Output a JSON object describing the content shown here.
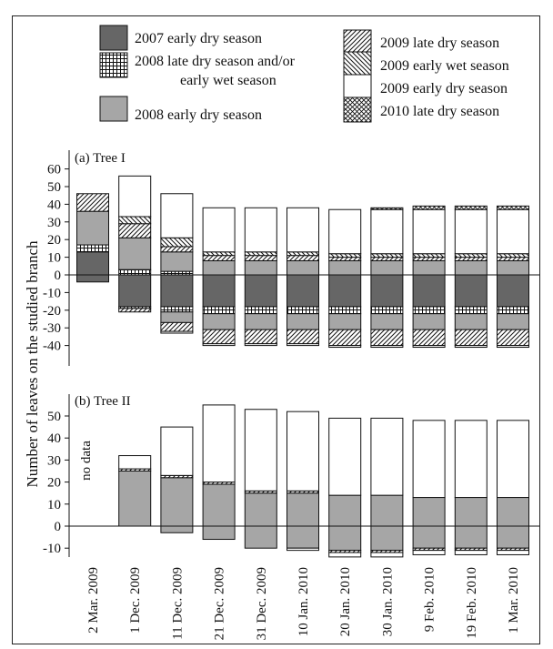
{
  "chart_data": {
    "type": "bar",
    "stacked": true,
    "ylabel": "Number of leaves on the studied branch",
    "categories": [
      "2 Mar. 2009",
      "1 Dec. 2009",
      "11 Dec. 2009",
      "21 Dec. 2009",
      "31 Dec. 2009",
      "10 Jan. 2010",
      "20 Jan. 2010",
      "30 Jan. 2010",
      "9 Feb. 2010",
      "19 Feb. 2010",
      "1 Mar. 2010"
    ],
    "legend": [
      {
        "key": "e07",
        "label": "2007 early dry season",
        "pattern": "dark"
      },
      {
        "key": "l08",
        "label": "2008 late dry season and/or",
        "label_line2": "early wet season",
        "pattern": "grid"
      },
      {
        "key": "e08",
        "label": "2008 early dry season",
        "pattern": "gray"
      },
      {
        "key": "l09",
        "label": "2009 late dry season",
        "pattern": "diag-right"
      },
      {
        "key": "w09",
        "label": "2009 early wet season",
        "pattern": "diag-left"
      },
      {
        "key": "d09",
        "label": "2009 early dry season",
        "pattern": "white"
      },
      {
        "key": "l10",
        "label": "2010 late dry season",
        "pattern": "cross"
      }
    ],
    "panels": [
      {
        "id": "tree1",
        "label": "(a) Tree I",
        "ylim": [
          -48,
          62
        ],
        "yticks": [
          60,
          50,
          40,
          30,
          20,
          10,
          0,
          -10,
          -20,
          -30,
          -40
        ],
        "positive": [
          [
            {
              "key": "e07",
              "v": 13
            },
            {
              "key": "l08",
              "v": 4
            },
            {
              "key": "e08",
              "v": 19
            },
            {
              "key": "l09",
              "v": 10
            }
          ],
          [
            {
              "key": "l08",
              "v": 3
            },
            {
              "key": "e08",
              "v": 18
            },
            {
              "key": "l09",
              "v": 8
            },
            {
              "key": "w09",
              "v": 4
            },
            {
              "key": "d09",
              "v": 23
            }
          ],
          [
            {
              "key": "l08",
              "v": 2
            },
            {
              "key": "e08",
              "v": 11
            },
            {
              "key": "l09",
              "v": 3
            },
            {
              "key": "w09",
              "v": 5
            },
            {
              "key": "d09",
              "v": 25
            }
          ],
          [
            {
              "key": "e08",
              "v": 8
            },
            {
              "key": "l09",
              "v": 3
            },
            {
              "key": "w09",
              "v": 2
            },
            {
              "key": "d09",
              "v": 25
            }
          ],
          [
            {
              "key": "e08",
              "v": 8
            },
            {
              "key": "l09",
              "v": 3
            },
            {
              "key": "w09",
              "v": 2
            },
            {
              "key": "d09",
              "v": 25
            }
          ],
          [
            {
              "key": "e08",
              "v": 8
            },
            {
              "key": "l09",
              "v": 3
            },
            {
              "key": "w09",
              "v": 2
            },
            {
              "key": "d09",
              "v": 25
            }
          ],
          [
            {
              "key": "e08",
              "v": 8
            },
            {
              "key": "l09",
              "v": 2
            },
            {
              "key": "w09",
              "v": 2
            },
            {
              "key": "d09",
              "v": 25
            }
          ],
          [
            {
              "key": "e08",
              "v": 8
            },
            {
              "key": "l09",
              "v": 2
            },
            {
              "key": "w09",
              "v": 2
            },
            {
              "key": "d09",
              "v": 25
            },
            {
              "key": "l10",
              "v": 1
            }
          ],
          [
            {
              "key": "e08",
              "v": 8
            },
            {
              "key": "l09",
              "v": 2
            },
            {
              "key": "w09",
              "v": 2
            },
            {
              "key": "d09",
              "v": 25
            },
            {
              "key": "l10",
              "v": 2
            }
          ],
          [
            {
              "key": "e08",
              "v": 8
            },
            {
              "key": "l09",
              "v": 2
            },
            {
              "key": "w09",
              "v": 2
            },
            {
              "key": "d09",
              "v": 25
            },
            {
              "key": "l10",
              "v": 2
            }
          ],
          [
            {
              "key": "e08",
              "v": 8
            },
            {
              "key": "l09",
              "v": 2
            },
            {
              "key": "w09",
              "v": 2
            },
            {
              "key": "d09",
              "v": 25
            },
            {
              "key": "l10",
              "v": 2
            }
          ]
        ],
        "negative": [
          [
            {
              "key": "e07",
              "v": 4
            }
          ],
          [
            {
              "key": "e07",
              "v": 18
            },
            {
              "key": "l08",
              "v": 1
            },
            {
              "key": "l09",
              "v": 2
            }
          ],
          [
            {
              "key": "e07",
              "v": 18
            },
            {
              "key": "l08",
              "v": 3
            },
            {
              "key": "e08",
              "v": 6
            },
            {
              "key": "l09",
              "v": 5
            },
            {
              "key": "d09",
              "v": 1
            }
          ],
          [
            {
              "key": "e07",
              "v": 18
            },
            {
              "key": "l08",
              "v": 4
            },
            {
              "key": "e08",
              "v": 9
            },
            {
              "key": "l09",
              "v": 8
            },
            {
              "key": "d09",
              "v": 1
            }
          ],
          [
            {
              "key": "e07",
              "v": 18
            },
            {
              "key": "l08",
              "v": 4
            },
            {
              "key": "e08",
              "v": 9
            },
            {
              "key": "l09",
              "v": 8
            },
            {
              "key": "d09",
              "v": 1
            }
          ],
          [
            {
              "key": "e07",
              "v": 18
            },
            {
              "key": "l08",
              "v": 4
            },
            {
              "key": "e08",
              "v": 9
            },
            {
              "key": "l09",
              "v": 8
            },
            {
              "key": "d09",
              "v": 1
            }
          ],
          [
            {
              "key": "e07",
              "v": 18
            },
            {
              "key": "l08",
              "v": 4
            },
            {
              "key": "e08",
              "v": 9
            },
            {
              "key": "l09",
              "v": 9
            },
            {
              "key": "d09",
              "v": 1
            }
          ],
          [
            {
              "key": "e07",
              "v": 18
            },
            {
              "key": "l08",
              "v": 4
            },
            {
              "key": "e08",
              "v": 9
            },
            {
              "key": "l09",
              "v": 9
            },
            {
              "key": "d09",
              "v": 1
            }
          ],
          [
            {
              "key": "e07",
              "v": 18
            },
            {
              "key": "l08",
              "v": 4
            },
            {
              "key": "e08",
              "v": 9
            },
            {
              "key": "l09",
              "v": 9
            },
            {
              "key": "d09",
              "v": 1
            }
          ],
          [
            {
              "key": "e07",
              "v": 18
            },
            {
              "key": "l08",
              "v": 4
            },
            {
              "key": "e08",
              "v": 9
            },
            {
              "key": "l09",
              "v": 9
            },
            {
              "key": "d09",
              "v": 1
            }
          ],
          [
            {
              "key": "e07",
              "v": 18
            },
            {
              "key": "l08",
              "v": 4
            },
            {
              "key": "e08",
              "v": 9
            },
            {
              "key": "l09",
              "v": 9
            },
            {
              "key": "d09",
              "v": 1
            }
          ]
        ]
      },
      {
        "id": "tree2",
        "label": "(b) Tree II",
        "ylim": [
          -17,
          57
        ],
        "yticks": [
          50,
          40,
          30,
          20,
          10,
          0,
          -10
        ],
        "note": "no data",
        "positive": [
          [],
          [
            {
              "key": "e08",
              "v": 25
            },
            {
              "key": "l09",
              "v": 1
            },
            {
              "key": "d09",
              "v": 6
            }
          ],
          [
            {
              "key": "e08",
              "v": 22
            },
            {
              "key": "l09",
              "v": 1
            },
            {
              "key": "d09",
              "v": 22
            }
          ],
          [
            {
              "key": "e08",
              "v": 19
            },
            {
              "key": "l09",
              "v": 1
            },
            {
              "key": "d09",
              "v": 35
            }
          ],
          [
            {
              "key": "e08",
              "v": 15
            },
            {
              "key": "l09",
              "v": 1
            },
            {
              "key": "d09",
              "v": 37
            }
          ],
          [
            {
              "key": "e08",
              "v": 15
            },
            {
              "key": "l09",
              "v": 1
            },
            {
              "key": "d09",
              "v": 36
            }
          ],
          [
            {
              "key": "e08",
              "v": 14
            },
            {
              "key": "d09",
              "v": 35
            }
          ],
          [
            {
              "key": "e08",
              "v": 14
            },
            {
              "key": "d09",
              "v": 35
            }
          ],
          [
            {
              "key": "e08",
              "v": 13
            },
            {
              "key": "d09",
              "v": 35
            }
          ],
          [
            {
              "key": "e08",
              "v": 13
            },
            {
              "key": "d09",
              "v": 35
            }
          ],
          [
            {
              "key": "e08",
              "v": 13
            },
            {
              "key": "d09",
              "v": 35
            }
          ]
        ],
        "negative": [
          [],
          [],
          [
            {
              "key": "e08",
              "v": 3
            }
          ],
          [
            {
              "key": "e08",
              "v": 6
            }
          ],
          [
            {
              "key": "e08",
              "v": 10
            }
          ],
          [
            {
              "key": "e08",
              "v": 10
            },
            {
              "key": "d09",
              "v": 1
            }
          ],
          [
            {
              "key": "e08",
              "v": 11
            },
            {
              "key": "l09",
              "v": 1
            },
            {
              "key": "d09",
              "v": 2
            }
          ],
          [
            {
              "key": "e08",
              "v": 11
            },
            {
              "key": "l09",
              "v": 1
            },
            {
              "key": "d09",
              "v": 2
            }
          ],
          [
            {
              "key": "e08",
              "v": 10
            },
            {
              "key": "l09",
              "v": 1
            },
            {
              "key": "d09",
              "v": 2
            }
          ],
          [
            {
              "key": "e08",
              "v": 10
            },
            {
              "key": "l09",
              "v": 1
            },
            {
              "key": "d09",
              "v": 2
            }
          ],
          [
            {
              "key": "e08",
              "v": 10
            },
            {
              "key": "l09",
              "v": 1
            },
            {
              "key": "d09",
              "v": 2
            }
          ]
        ]
      }
    ],
    "colors": {
      "dark": "#666666",
      "gray": "#a6a6a6",
      "white": "#ffffff",
      "stroke": "#111111"
    }
  }
}
